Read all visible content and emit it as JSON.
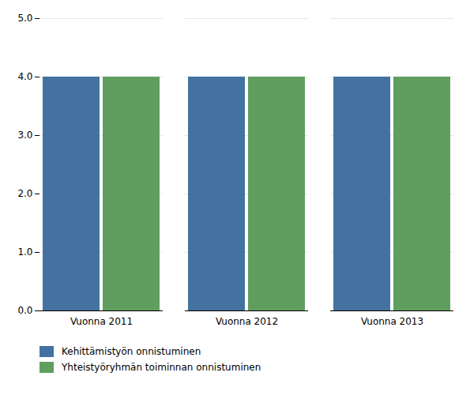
{
  "chart_data": {
    "type": "bar",
    "categories": [
      "Vuonna 2011",
      "Vuonna 2012",
      "Vuonna 2013"
    ],
    "series": [
      {
        "name": "Kehittämistyön onnistuminen",
        "color": "#4472A0",
        "values": [
          4,
          4,
          4
        ]
      },
      {
        "name": "Yhteistyöryhmän toiminnan onnistuminen",
        "color": "#5F9E5F",
        "values": [
          4,
          4,
          4
        ]
      }
    ],
    "ylim": [
      0,
      5
    ],
    "yticks": [
      0,
      1,
      2,
      3,
      4,
      5
    ],
    "grid": true,
    "legend": "bottom"
  }
}
